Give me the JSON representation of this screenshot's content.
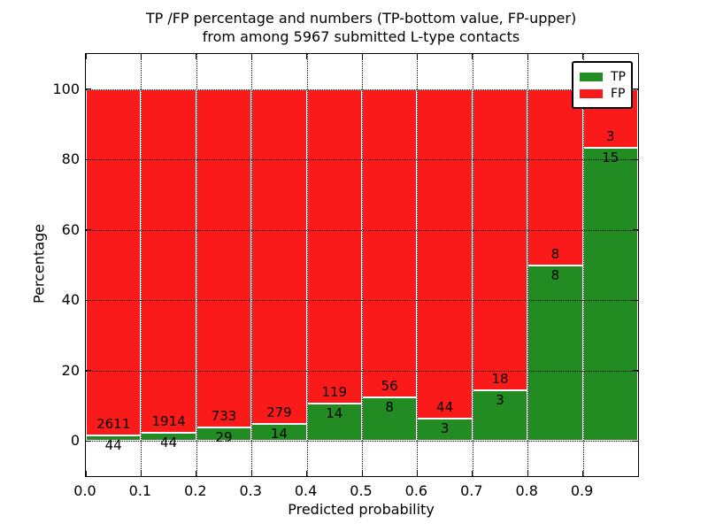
{
  "title": {
    "line1": "TP /FP percentage and numbers (TP-bottom value, FP-upper)",
    "line2": "from among 5967 submitted L-type contacts"
  },
  "chart_data": {
    "type": "bar",
    "stacked": true,
    "normalized_to_percent": true,
    "title": "TP /FP percentage and numbers (TP-bottom value, FP-upper) from among 5967 submitted L-type contacts",
    "xlabel": "Predicted probability",
    "ylabel": "Percentage",
    "categories": [
      "0.0",
      "0.1",
      "0.2",
      "0.3",
      "0.4",
      "0.5",
      "0.6",
      "0.7",
      "0.8",
      "0.9"
    ],
    "bin_width": 0.1,
    "series": [
      {
        "name": "TP",
        "color": "#228b22",
        "counts": [
          44,
          44,
          29,
          14,
          14,
          8,
          3,
          3,
          8,
          15
        ]
      },
      {
        "name": "FP",
        "color": "#fa1a1a",
        "counts": [
          2611,
          1914,
          733,
          279,
          119,
          56,
          44,
          18,
          8,
          3
        ]
      }
    ],
    "tp_percent_of_bin": [
      1.66,
      2.25,
      3.81,
      4.78,
      10.53,
      12.5,
      6.38,
      14.29,
      50.0,
      83.33
    ],
    "total_submitted": 5967,
    "xlim": [
      0.0,
      1.0
    ],
    "ylim": [
      -10,
      110
    ],
    "xticks": [
      "0.0",
      "0.1",
      "0.2",
      "0.3",
      "0.4",
      "0.5",
      "0.6",
      "0.7",
      "0.8",
      "0.9"
    ],
    "yticks": [
      0,
      20,
      40,
      60,
      80,
      100
    ],
    "grid": "dotted black, both axes, drawn over bars",
    "legend": {
      "position": "upper right",
      "entries": [
        {
          "label": "TP",
          "color": "#228b22"
        },
        {
          "label": "FP",
          "color": "#fa1a1a"
        }
      ]
    }
  },
  "colors": {
    "tp_green": "#228b22",
    "fp_red": "#fa1a1a",
    "background": "#ffffff",
    "text": "#000000",
    "bar_edge": "#ffffff"
  }
}
